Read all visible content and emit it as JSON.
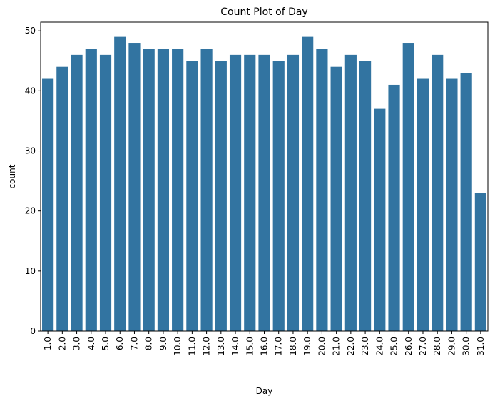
{
  "chart_data": {
    "type": "bar",
    "title": "Count Plot of Day",
    "xlabel": "Day",
    "ylabel": "count",
    "categories": [
      "1.0",
      "2.0",
      "3.0",
      "4.0",
      "5.0",
      "6.0",
      "7.0",
      "8.0",
      "9.0",
      "10.0",
      "11.0",
      "12.0",
      "13.0",
      "14.0",
      "15.0",
      "16.0",
      "17.0",
      "18.0",
      "19.0",
      "20.0",
      "21.0",
      "22.0",
      "23.0",
      "24.0",
      "25.0",
      "26.0",
      "27.0",
      "28.0",
      "29.0",
      "30.0",
      "31.0"
    ],
    "values": [
      42,
      44,
      46,
      47,
      46,
      49,
      48,
      47,
      47,
      47,
      45,
      47,
      45,
      46,
      46,
      46,
      45,
      46,
      49,
      47,
      44,
      46,
      45,
      37,
      41,
      48,
      42,
      46,
      42,
      43,
      23
    ],
    "ylim": [
      0,
      51.45
    ],
    "yticks": [
      0,
      10,
      20,
      30,
      40,
      50
    ],
    "grid": false,
    "legend": "none",
    "bar_color": "#3274a1"
  }
}
